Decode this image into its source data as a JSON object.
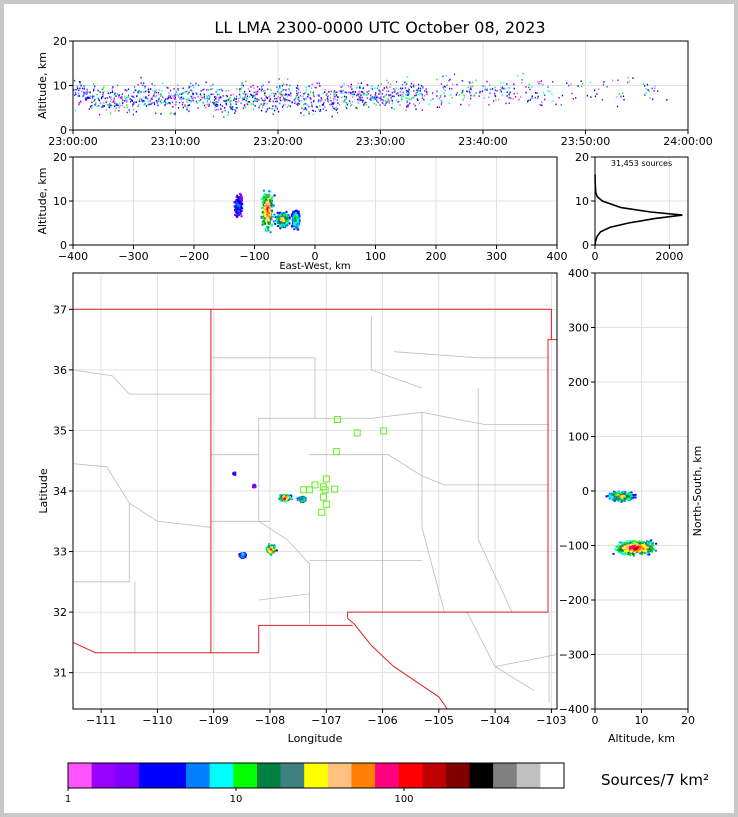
{
  "title": "LL LMA 2300-0000 UTC October 08, 2023",
  "colorbar": {
    "label": "Sources/7 km²",
    "ticks": [
      "1",
      "10",
      "100"
    ],
    "colors": [
      "#ff55ff",
      "#9a00ff",
      "#8000ff",
      "#0000ff",
      "#0000ff",
      "#0080ff",
      "#00ffff",
      "#00ff00",
      "#008040",
      "#408080",
      "#ffff00",
      "#ffc080",
      "#ff8000",
      "#ff0080",
      "#ff0000",
      "#c00000",
      "#800000",
      "#000000",
      "#808080",
      "#c0c0c0",
      "#ffffff"
    ]
  },
  "chart_data": [
    {
      "panel": "time-height",
      "type": "scatter",
      "xlabel": "",
      "ylabel": "Altitude, km",
      "xticks": [
        "23:00:00",
        "23:10:00",
        "23:20:00",
        "23:30:00",
        "23:40:00",
        "23:50:00",
        "24:00:00"
      ],
      "xlim_min": [
        0,
        60
      ],
      "ylim": [
        0,
        20
      ],
      "yticks": [
        0,
        10,
        20
      ],
      "x": [
        1,
        3,
        5,
        7,
        9,
        11,
        13,
        15,
        17,
        19,
        21,
        23,
        25,
        27,
        29,
        31,
        33,
        35,
        37,
        39,
        41,
        43,
        45,
        47,
        49,
        51,
        53,
        55,
        57
      ],
      "y": [
        8,
        7,
        7,
        8,
        7,
        8,
        7,
        6,
        8,
        7,
        8,
        7,
        7,
        8,
        8,
        8,
        8,
        8,
        9,
        9,
        9,
        9,
        9,
        9,
        9,
        9,
        9,
        10,
        9
      ]
    },
    {
      "panel": "east-west-altitude",
      "type": "heatmap",
      "xlabel": "East-West, km",
      "ylabel": "Altitude, km",
      "xlim": [
        -400,
        400
      ],
      "xticks": [
        -400,
        -300,
        -200,
        -100,
        0,
        100,
        200,
        300,
        400
      ],
      "ylim": [
        0,
        20
      ],
      "yticks": [
        0,
        10,
        20
      ],
      "clusters": [
        {
          "x": -128,
          "y": 9,
          "level": 5
        },
        {
          "x": -80,
          "y": 8,
          "level": 14
        },
        {
          "x": -55,
          "y": 6,
          "level": 12
        },
        {
          "x": -33,
          "y": 6,
          "level": 9
        }
      ]
    },
    {
      "panel": "altitude-histogram",
      "type": "line",
      "annotation": "31,453 sources",
      "xlim": [
        0,
        2500
      ],
      "xticks": [
        0,
        2000
      ],
      "ylim": [
        0,
        20
      ],
      "yticks": [
        0,
        10,
        20
      ],
      "x": [
        0,
        20,
        60,
        150,
        400,
        900,
        1600,
        2350,
        1500,
        700,
        200,
        60,
        20,
        5,
        2
      ],
      "y": [
        0,
        1,
        2,
        3,
        4,
        5,
        6,
        6.8,
        7.5,
        8.5,
        10,
        11,
        12,
        14,
        16
      ]
    },
    {
      "panel": "plan-view",
      "type": "heatmap",
      "xlabel": "Longitude",
      "ylabel": "Latitude",
      "xlim": [
        -111.5,
        -102.9
      ],
      "ylim": [
        30.4,
        37.6
      ],
      "xticks": [
        -111,
        -110,
        -109,
        -108,
        -107,
        -106,
        -105,
        -104,
        -103
      ],
      "yticks": [
        31,
        32,
        33,
        34,
        35,
        36,
        37
      ],
      "clusters": [
        {
          "lon": -108.0,
          "lat": 33.05,
          "level": 15
        },
        {
          "lon": -108.5,
          "lat": 32.95,
          "level": 8
        },
        {
          "lon": -107.75,
          "lat": 33.9,
          "level": 16
        },
        {
          "lon": -107.45,
          "lat": 33.88,
          "level": 10
        },
        {
          "lon": -108.65,
          "lat": 34.3,
          "level": 4
        },
        {
          "lon": -108.3,
          "lat": 34.1,
          "level": 3
        }
      ],
      "stations": [
        {
          "lon": -106.8,
          "lat": 35.18
        },
        {
          "lon": -106.45,
          "lat": 34.96
        },
        {
          "lon": -105.98,
          "lat": 34.99
        },
        {
          "lon": -106.82,
          "lat": 34.65
        },
        {
          "lon": -107.0,
          "lat": 34.2
        },
        {
          "lon": -107.05,
          "lat": 34.07
        },
        {
          "lon": -107.2,
          "lat": 34.1
        },
        {
          "lon": -107.3,
          "lat": 34.02
        },
        {
          "lon": -107.4,
          "lat": 34.02
        },
        {
          "lon": -107.02,
          "lat": 34.02
        },
        {
          "lon": -106.85,
          "lat": 34.03
        },
        {
          "lon": -107.05,
          "lat": 33.9
        },
        {
          "lon": -107.0,
          "lat": 33.78
        },
        {
          "lon": -107.08,
          "lat": 33.65
        }
      ]
    },
    {
      "panel": "altitude-north-south",
      "type": "heatmap",
      "xlabel": "Altitude, km",
      "ylabel": "North-South, km",
      "xlim": [
        0,
        20
      ],
      "xticks": [
        0,
        10,
        20
      ],
      "ylim": [
        -400,
        400
      ],
      "yticks": [
        -400,
        -300,
        -200,
        -100,
        0,
        100,
        200,
        300,
        400
      ],
      "clusters": [
        {
          "alt": 5.5,
          "ns": -8,
          "level": 12
        },
        {
          "alt": 8.5,
          "ns": -103,
          "level": 15
        }
      ]
    }
  ]
}
